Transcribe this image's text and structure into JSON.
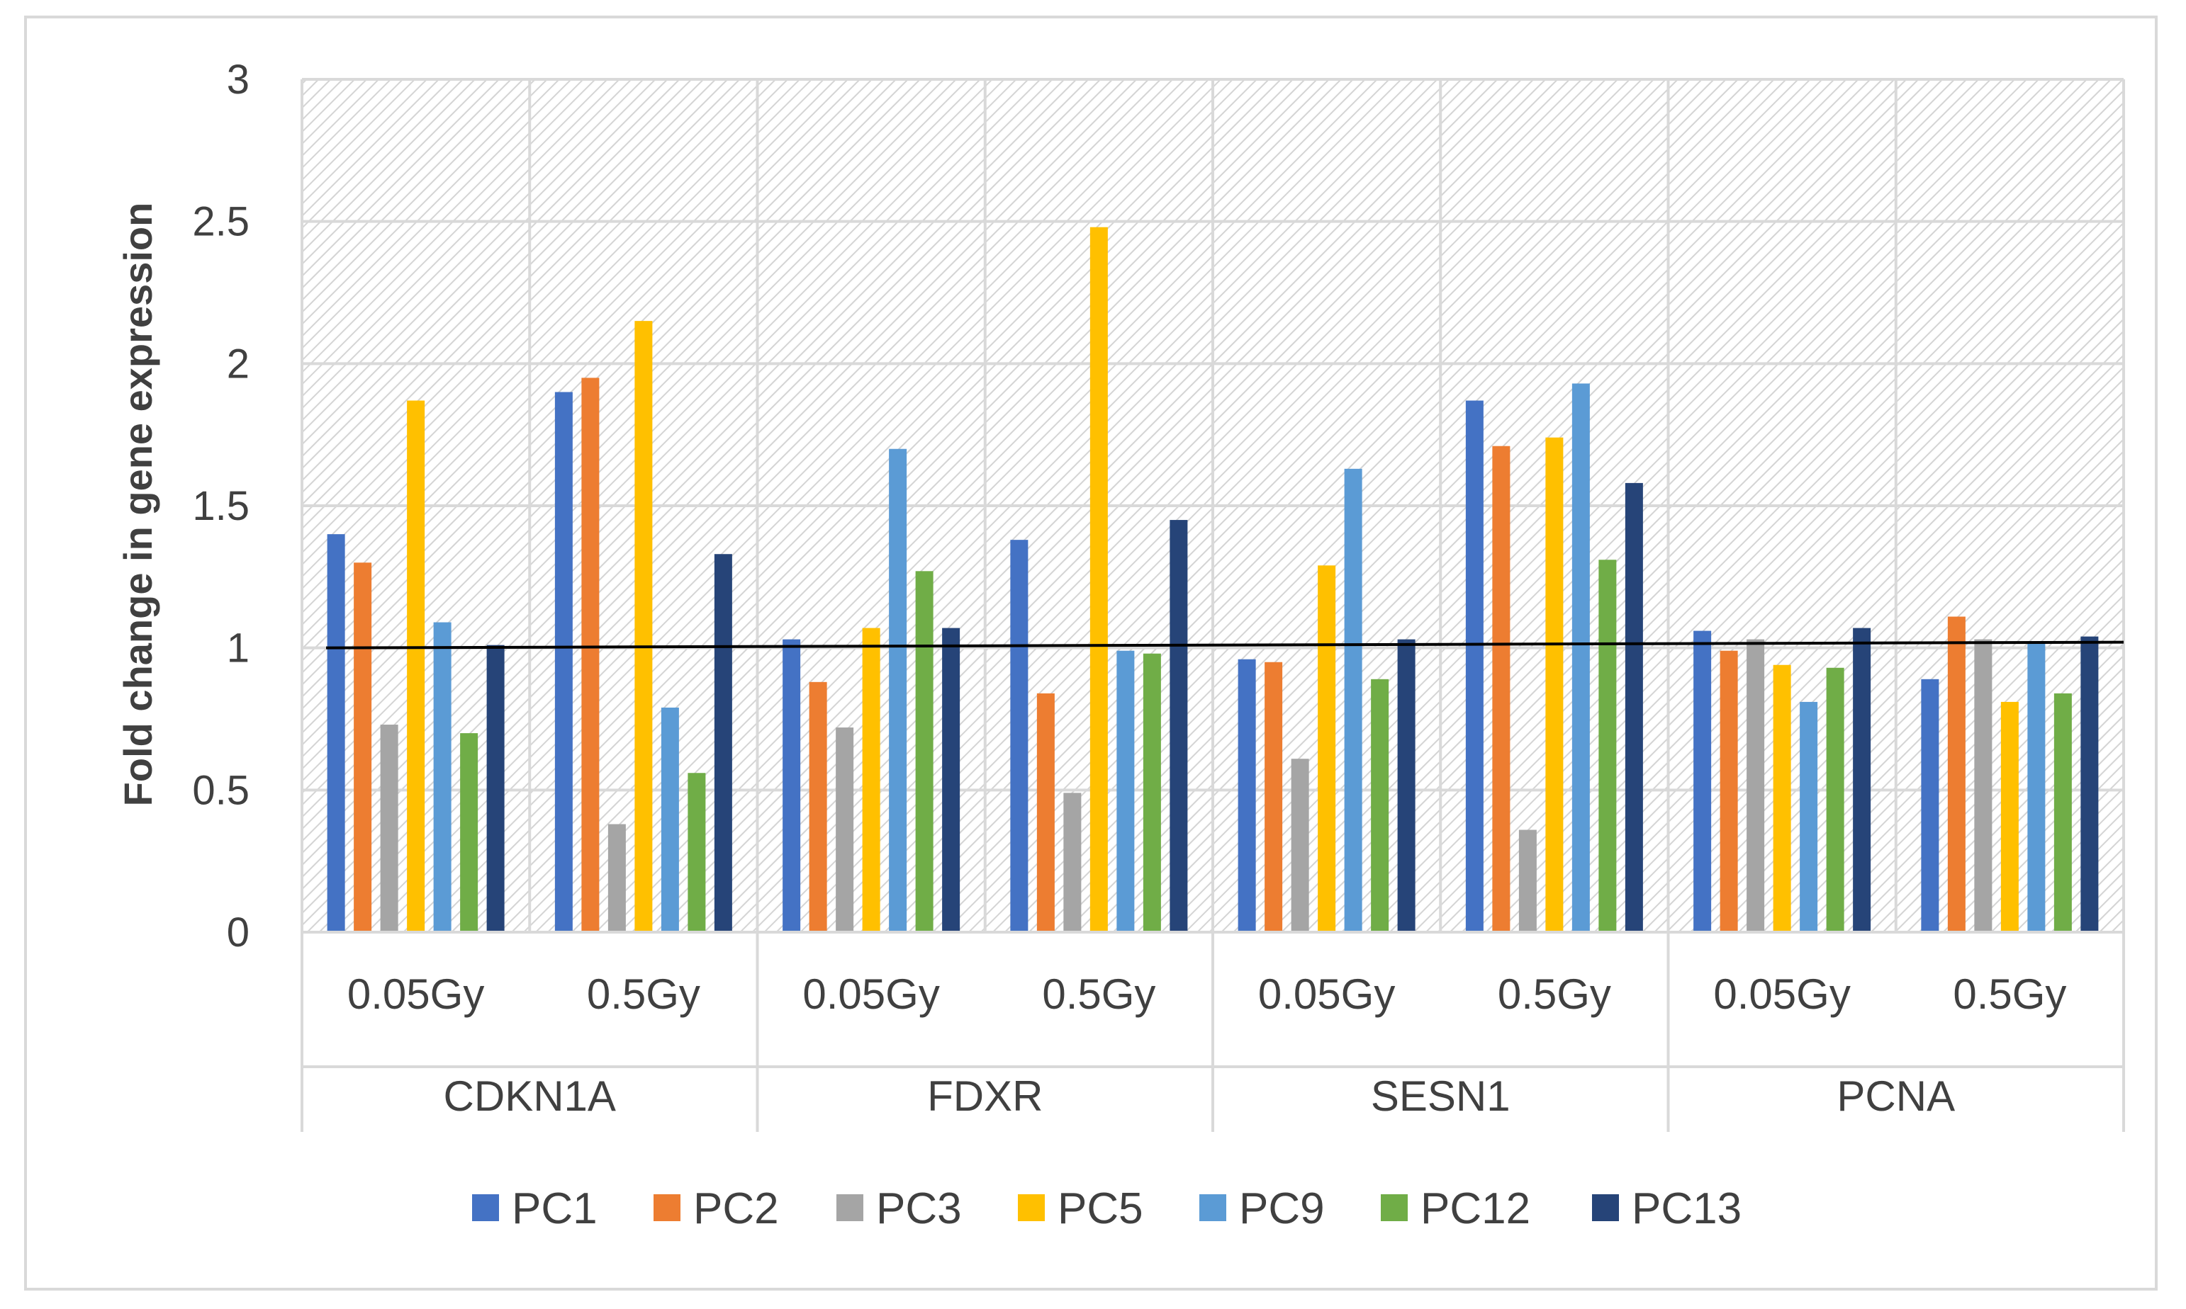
{
  "chart_data": {
    "type": "bar",
    "title": "",
    "ylabel": "Fold change in gene expression",
    "xlabel": "",
    "ylim": [
      0,
      3
    ],
    "yticks": [
      "0",
      "0.5",
      "1",
      "1.5",
      "2",
      "2.5",
      "3"
    ],
    "grid": true,
    "legend_position": "bottom",
    "groups": [
      "CDKN1A",
      "FDXR",
      "SESN1",
      "PCNA"
    ],
    "categories": [
      "0.05Gy",
      "0.5Gy",
      "0.05Gy",
      "0.5Gy",
      "0.05Gy",
      "0.5Gy",
      "0.05Gy",
      "0.5Gy"
    ],
    "reference_line": {
      "value": 1.0,
      "start_value": 1.0,
      "end_value": 1.02
    },
    "series": [
      {
        "name": "PC1",
        "color": "#4472C4",
        "values": [
          1.4,
          1.9,
          1.03,
          1.38,
          0.96,
          1.87,
          1.06,
          0.89
        ]
      },
      {
        "name": "PC2",
        "color": "#ED7D31",
        "values": [
          1.3,
          1.95,
          0.88,
          0.84,
          0.95,
          1.71,
          0.99,
          1.11
        ]
      },
      {
        "name": "PC3",
        "color": "#A5A5A5",
        "values": [
          0.73,
          0.38,
          0.72,
          0.49,
          0.61,
          0.36,
          1.03,
          1.03
        ]
      },
      {
        "name": "PC5",
        "color": "#FFC000",
        "values": [
          1.87,
          2.15,
          1.07,
          2.48,
          1.29,
          1.74,
          0.94,
          0.81
        ]
      },
      {
        "name": "PC9",
        "color": "#5B9BD5",
        "values": [
          1.09,
          0.79,
          1.7,
          0.99,
          1.63,
          1.93,
          0.81,
          1.02
        ]
      },
      {
        "name": "PC12",
        "color": "#70AD47",
        "values": [
          0.7,
          0.56,
          1.27,
          0.98,
          0.89,
          1.31,
          0.93,
          0.84
        ]
      },
      {
        "name": "PC13",
        "color": "#264478",
        "values": [
          1.01,
          1.33,
          1.07,
          1.45,
          1.03,
          1.58,
          1.07,
          1.04
        ]
      }
    ]
  }
}
